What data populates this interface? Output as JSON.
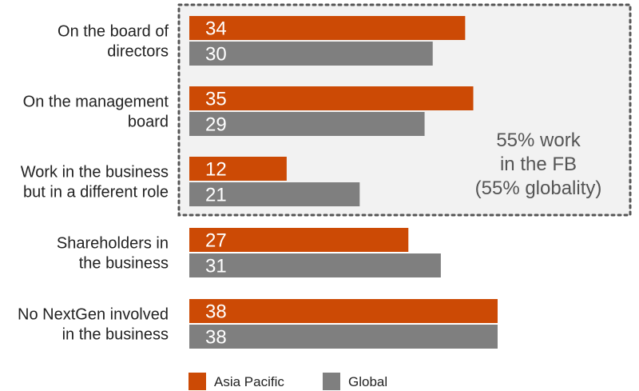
{
  "chart_data": {
    "type": "bar",
    "orientation": "horizontal",
    "categories": [
      [
        "On the board of",
        "directors"
      ],
      [
        "On the management",
        "board"
      ],
      [
        "Work in the business",
        "but in a different role"
      ],
      [
        "Shareholders in",
        "the business"
      ],
      [
        "No NextGen involved",
        "in the business"
      ]
    ],
    "series": [
      {
        "name": "Asia Pacific",
        "values": [
          34,
          35,
          12,
          27,
          38
        ],
        "color": "#cc4a05"
      },
      {
        "name": "Global",
        "values": [
          30,
          29,
          21,
          31,
          38
        ],
        "color": "#7f7f7f"
      }
    ],
    "xlim": [
      0,
      38
    ],
    "grid": false,
    "annotation": {
      "lines": [
        "55% work",
        "in the FB",
        "(55% globality)"
      ],
      "highlight_categories": [
        0,
        1,
        2
      ]
    },
    "legend_placement": "bottom"
  }
}
